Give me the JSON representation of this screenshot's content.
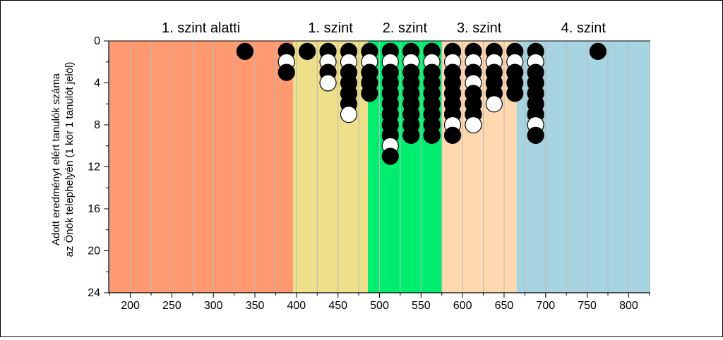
{
  "chart_data": {
    "type": "scatter",
    "ylabel_line1": "Adott eredményt elért tanulók száma",
    "ylabel_line2": "az Önök telephelyén (1 kör 1 tanulót jelöl)",
    "x_ticks": [
      200,
      250,
      300,
      350,
      400,
      450,
      500,
      550,
      600,
      650,
      700,
      750,
      800
    ],
    "y_ticks": [
      0,
      4,
      8,
      12,
      16,
      20,
      24
    ],
    "xlim": [
      174,
      826
    ],
    "ylim": [
      0,
      24
    ],
    "y_inverted": true,
    "minor_grid_step": 25,
    "levels": [
      {
        "name": "1. szint alatti",
        "x0": 174,
        "x1": 396,
        "color": "#FF9A70"
      },
      {
        "name": "1. szint",
        "x0": 396,
        "x1": 486,
        "color": "#EEE08A"
      },
      {
        "name": "2. szint",
        "x0": 486,
        "x1": 575,
        "color": "#00EE70"
      },
      {
        "name": "3. szint",
        "x0": 575,
        "x1": 665,
        "color": "#FFD8B0"
      },
      {
        "name": "4. szint",
        "x0": 665,
        "x1": 826,
        "color": "#A8D4E2"
      }
    ],
    "columns": [
      {
        "x": 338,
        "pattern": "b"
      },
      {
        "x": 388,
        "pattern": "bwb"
      },
      {
        "x": 413,
        "pattern": "b"
      },
      {
        "x": 438,
        "pattern": "bwbw"
      },
      {
        "x": 463,
        "pattern": "bwbbbbw"
      },
      {
        "x": 488,
        "pattern": "bwbbb"
      },
      {
        "x": 513,
        "pattern": "bwbbbbbbbwb"
      },
      {
        "x": 538,
        "pattern": "bwbbbbbbb"
      },
      {
        "x": 563,
        "pattern": "bwbbbbbbb"
      },
      {
        "x": 588,
        "pattern": "bwbbbbbwb"
      },
      {
        "x": 613,
        "pattern": "bwbwbbbw"
      },
      {
        "x": 638,
        "pattern": "bwbbbw"
      },
      {
        "x": 663,
        "pattern": "bwbbb"
      },
      {
        "x": 688,
        "pattern": "bwbbbbbwb"
      },
      {
        "x": 763,
        "pattern": "b"
      }
    ]
  }
}
